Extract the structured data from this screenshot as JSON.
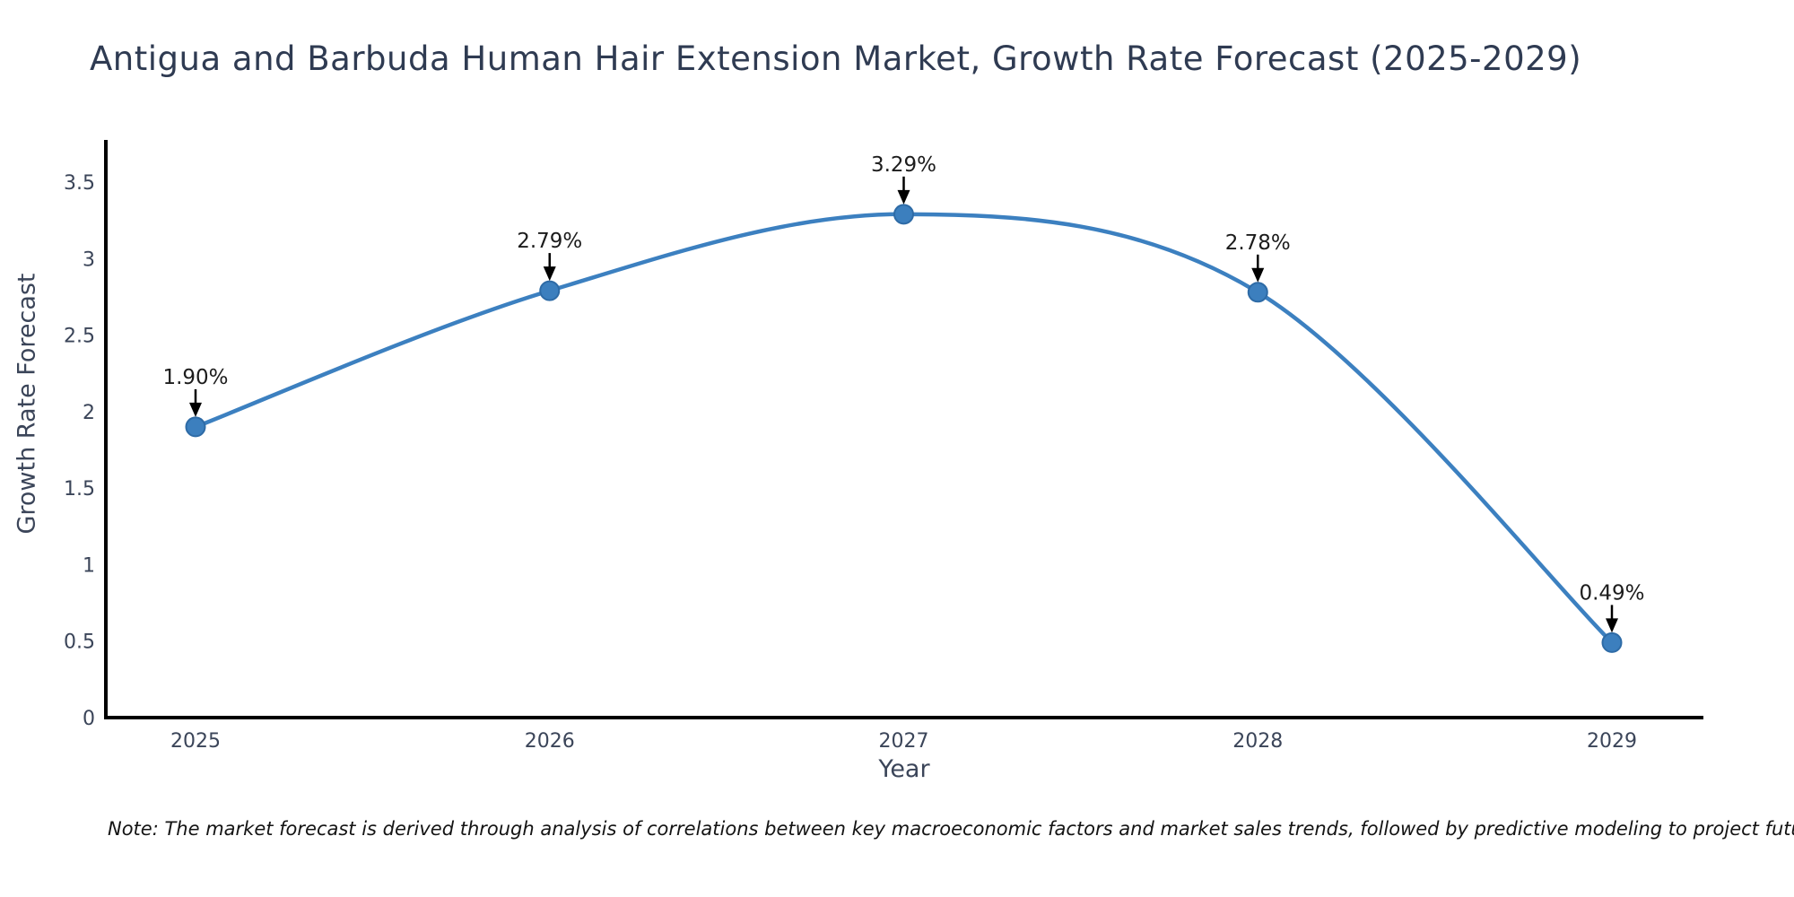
{
  "title": "Antigua and Barbuda Human Hair Extension Market, Growth Rate Forecast (2025-2029)",
  "note": "Note: The market forecast is derived through analysis of correlations between key macroeconomic factors and market sales trends, followed by predictive modeling to project future sales",
  "chart_data": {
    "type": "line",
    "title": "Antigua and Barbuda Human Hair Extension Market, Growth Rate Forecast (2025-2029)",
    "xlabel": "Year",
    "ylabel": "Growth Rate Forecast",
    "x": [
      2025,
      2026,
      2027,
      2028,
      2029
    ],
    "values": [
      1.9,
      2.79,
      3.29,
      2.78,
      0.49
    ],
    "point_labels": [
      "1.90%",
      "2.79%",
      "3.29%",
      "2.78%",
      "0.49%"
    ],
    "x_tick_labels": [
      "2025",
      "2026",
      "2027",
      "2028",
      "2029"
    ],
    "y_ticks": [
      0,
      0.5,
      1,
      1.5,
      2,
      2.5,
      3,
      3.5
    ],
    "y_tick_labels": [
      "0",
      "0.5",
      "1",
      "1.5",
      "2",
      "2.5",
      "3",
      "3.5"
    ],
    "ylim": [
      0,
      3.5
    ],
    "xlim_years": [
      2025,
      2029
    ],
    "grid": false,
    "legend": false,
    "line_shape": "spline",
    "annotation_arrows": true,
    "colors": {
      "line": "#3c80c0",
      "marker_fill": "#3c7fbe",
      "marker_edge": "#2e6ba6",
      "axis_line": "#000000",
      "title_text": "#2f3b52",
      "tick_text": "#3b4559",
      "annotation_text": "#1c1c1c"
    }
  }
}
